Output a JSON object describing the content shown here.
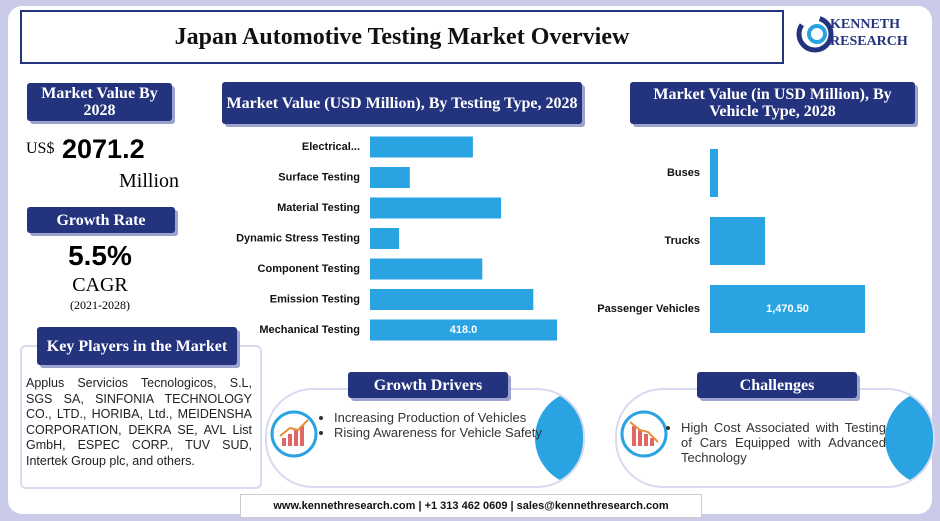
{
  "header": {
    "title": "Japan Automotive Testing Market Overview",
    "logo_line1": "KENNETH",
    "logo_line2": "RESEARCH"
  },
  "market_value": {
    "heading": "Market Value By 2028",
    "currency": "US$",
    "value": "2071.2",
    "unit": "Million"
  },
  "growth_rate": {
    "heading": "Growth Rate",
    "value": "5.5%",
    "label": "CAGR",
    "period": "(2021-2028)"
  },
  "key_players": {
    "heading": "Key Players in the Market",
    "text": "Applus Servicios Tecnologicos, S.L, SGS SA, SINFONIA TECHNOLOGY CO., LTD., HORIBA, Ltd., MEIDENSHA CORPORATION, DEKRA SE, AVL List GmbH, ESPEC CORP., TUV SUD, Intertek Group plc, and others."
  },
  "growth_drivers": {
    "heading": "Growth Drivers",
    "items": [
      "Increasing Production of Vehicles",
      "Rising Awareness for Vehicle Safety"
    ]
  },
  "challenges": {
    "heading": "Challenges",
    "items": [
      "High Cost Associated with Testing of Cars Equipped with Advanced Technology"
    ]
  },
  "footer": "www.kennethresearch.com | +1 313 462 0609 | sales@kennethresearch.com",
  "chart_data": [
    {
      "type": "bar",
      "title": "Market Value (USD Million), By Testing Type, 2028",
      "categories": [
        "Electrical...",
        "Surface Testing",
        "Material Testing",
        "Dynamic Stress Testing",
        "Component Testing",
        "Emission Testing",
        "Mechanical Testing"
      ],
      "values": [
        230,
        89,
        293,
        65,
        251,
        365,
        418
      ],
      "value_labels": [
        null,
        null,
        null,
        null,
        null,
        null,
        "418.0"
      ],
      "color": "#29a3e2"
    },
    {
      "type": "bar",
      "title": "Market Value (in USD Million), By Vehicle Type, 2028",
      "categories": [
        "Buses",
        "Trucks",
        "Passenger Vehicles"
      ],
      "values": [
        76,
        522,
        1470.5
      ],
      "value_labels": [
        null,
        null,
        "1,470.50"
      ],
      "color": "#29a3e2"
    }
  ]
}
